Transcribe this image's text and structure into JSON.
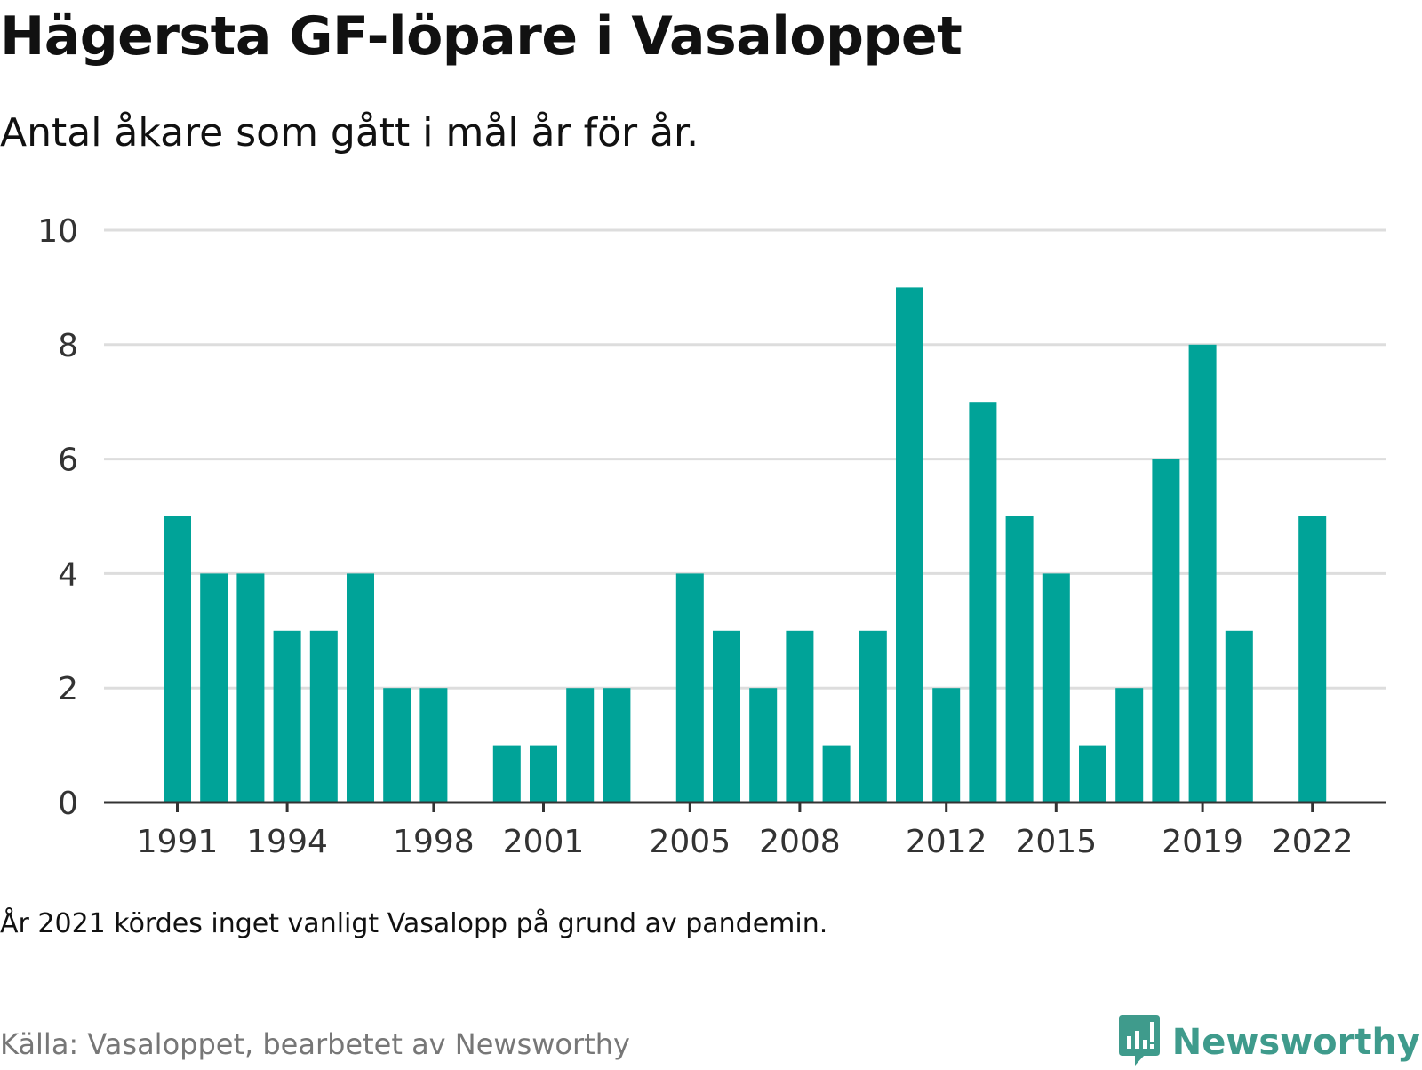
{
  "title": "Hägersta GF-löpare i Vasaloppet",
  "subtitle": "Antal åkare som gått i mål år för år.",
  "note": "År 2021 kördes inget vanligt Vasalopp på grund av pandemin.",
  "source": "Källa: Vasaloppet, bearbetet av Newsworthy",
  "brand": {
    "name": "Newsworthy",
    "icon": "newsworthy-logo-icon"
  },
  "colors": {
    "bar": "#00a398",
    "grid": "#dddddd",
    "axis": "#333333",
    "brand": "#3f9b8c"
  },
  "chart_data": {
    "type": "bar",
    "categories": [
      1991,
      1992,
      1993,
      1994,
      1995,
      1996,
      1997,
      1998,
      1999,
      2000,
      2001,
      2002,
      2003,
      2004,
      2005,
      2006,
      2007,
      2008,
      2009,
      2010,
      2011,
      2012,
      2013,
      2014,
      2015,
      2016,
      2017,
      2018,
      2019,
      2020,
      2021,
      2022
    ],
    "values": [
      5,
      4,
      4,
      3,
      3,
      4,
      2,
      2,
      0,
      1,
      1,
      2,
      2,
      0,
      4,
      3,
      2,
      3,
      1,
      3,
      9,
      2,
      7,
      5,
      4,
      1,
      2,
      6,
      8,
      3,
      0,
      5
    ],
    "x_tick_labels": [
      "1991",
      "1994",
      "1998",
      "2001",
      "2005",
      "2008",
      "2012",
      "2015",
      "2019",
      "2022"
    ],
    "y_ticks": [
      0,
      2,
      4,
      6,
      8,
      10
    ],
    "ylim": [
      0,
      10
    ],
    "xlabel": "",
    "ylabel": "",
    "grid": true,
    "legend": false
  }
}
